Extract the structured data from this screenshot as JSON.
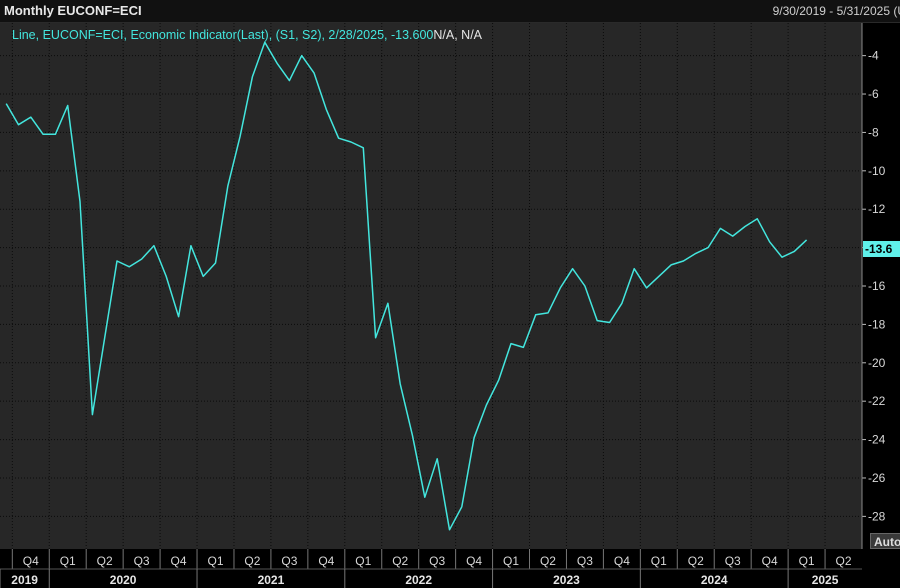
{
  "header": {
    "title": "Monthly EUCONF=ECI",
    "date_range": "9/30/2019 - 5/31/2025 (U"
  },
  "legend": {
    "text": "Line, EUCONF=ECI, Economic Indicator(Last), (S1, S2), 2/28/2025, -13.600",
    "na_text": "N/A, N/A"
  },
  "last_value_label": "-13.6",
  "auto_button": "Auto",
  "colors": {
    "line": "#43e6de",
    "plot_bg": "#272727",
    "grid": "#000000",
    "badge": "#5ff0ea"
  },
  "chart_data": {
    "type": "line",
    "title": "Monthly EUCONF=ECI",
    "series": [
      {
        "name": "EUCONF=ECI",
        "x": [
          "2019-09",
          "2019-10",
          "2019-11",
          "2019-12",
          "2020-01",
          "2020-02",
          "2020-03",
          "2020-04",
          "2020-05",
          "2020-06",
          "2020-07",
          "2020-08",
          "2020-09",
          "2020-10",
          "2020-11",
          "2020-12",
          "2021-01",
          "2021-02",
          "2021-03",
          "2021-04",
          "2021-05",
          "2021-06",
          "2021-07",
          "2021-08",
          "2021-09",
          "2021-10",
          "2021-11",
          "2021-12",
          "2022-01",
          "2022-02",
          "2022-03",
          "2022-04",
          "2022-05",
          "2022-06",
          "2022-07",
          "2022-08",
          "2022-09",
          "2022-10",
          "2022-11",
          "2022-12",
          "2023-01",
          "2023-02",
          "2023-03",
          "2023-04",
          "2023-05",
          "2023-06",
          "2023-07",
          "2023-08",
          "2023-09",
          "2023-10",
          "2023-11",
          "2023-12",
          "2024-01",
          "2024-02",
          "2024-03",
          "2024-04",
          "2024-05",
          "2024-06",
          "2024-07",
          "2024-08",
          "2024-09",
          "2024-10",
          "2024-11",
          "2024-12",
          "2025-01",
          "2025-02"
        ],
        "values": [
          -6.5,
          -7.6,
          -7.2,
          -8.1,
          -8.1,
          -6.6,
          -11.6,
          -22.7,
          -18.7,
          -14.7,
          -15.0,
          -14.6,
          -13.9,
          -15.5,
          -17.6,
          -13.9,
          -15.5,
          -14.8,
          -10.8,
          -8.2,
          -5.1,
          -3.3,
          -4.4,
          -5.3,
          -4.0,
          -4.9,
          -6.8,
          -8.3,
          -8.5,
          -8.8,
          -18.7,
          -16.9,
          -21.1,
          -23.8,
          -27.0,
          -25.0,
          -28.7,
          -27.5,
          -23.9,
          -22.2,
          -20.9,
          -19.0,
          -19.2,
          -17.5,
          -17.4,
          -16.1,
          -15.1,
          -16.0,
          -17.8,
          -17.9,
          -16.9,
          -15.1,
          -16.1,
          -15.5,
          -14.9,
          -14.7,
          -14.3,
          -14.0,
          -13.0,
          -13.4,
          -12.9,
          -12.5,
          -13.7,
          -14.5,
          -14.2,
          -13.6
        ]
      }
    ],
    "y_ticks": [
      "-4",
      "-6",
      "-8",
      "-10",
      "-12",
      "-14",
      "-16",
      "-18",
      "-20",
      "-22",
      "-24",
      "-26",
      "-28"
    ],
    "y_tick_values": [
      -4,
      -6,
      -8,
      -10,
      -12,
      -14,
      -16,
      -18,
      -20,
      -22,
      -24,
      -26,
      -28
    ],
    "x_quarters": [
      "Q4",
      "Q1",
      "Q2",
      "Q3",
      "Q4",
      "Q1",
      "Q2",
      "Q3",
      "Q4",
      "Q1",
      "Q2",
      "Q3",
      "Q4",
      "Q1",
      "Q2",
      "Q3",
      "Q4",
      "Q1",
      "Q2",
      "Q3",
      "Q4",
      "Q1",
      "Q2"
    ],
    "x_years": [
      "2019",
      "2020",
      "2021",
      "2022",
      "2023",
      "2024",
      "2025"
    ],
    "ylim": [
      -29.7,
      -2.3
    ],
    "xlim": [
      "2019-09",
      "2025-06"
    ],
    "grid": true,
    "legend_position": "top-left"
  }
}
